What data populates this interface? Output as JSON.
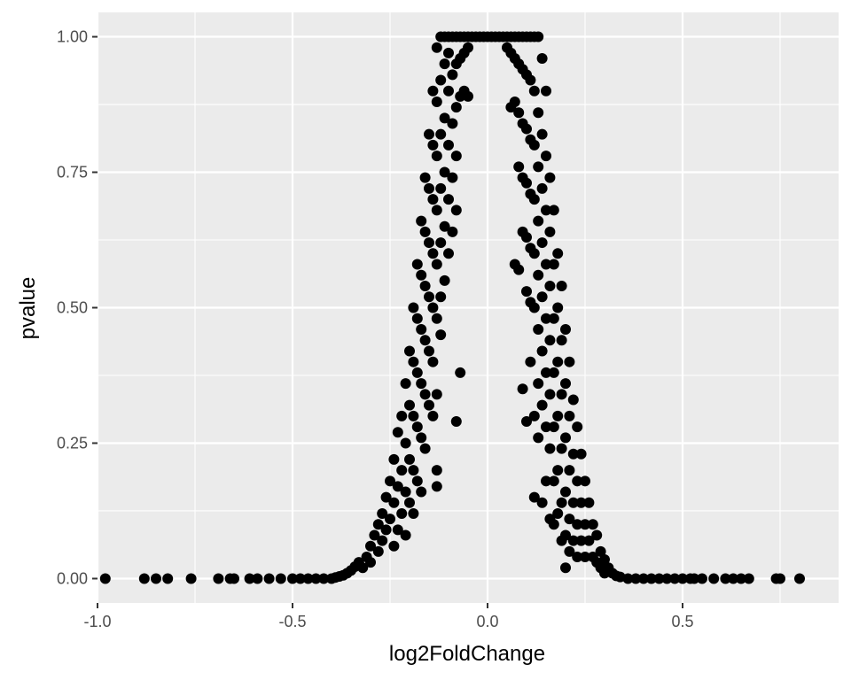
{
  "chart_data": {
    "type": "scatter",
    "title": "",
    "xlabel": "log2FoldChange",
    "ylabel": "pvalue",
    "xlim": [
      -1.0,
      0.9
    ],
    "ylim": [
      -0.045,
      1.045
    ],
    "x_ticks": [
      -1.0,
      -0.5,
      0.0,
      0.5
    ],
    "x_tick_labels": [
      "-1.0",
      "-0.5",
      "0.0",
      "0.5"
    ],
    "y_ticks": [
      0.0,
      0.25,
      0.5,
      0.75,
      1.0
    ],
    "y_tick_labels": [
      "0.00",
      "0.25",
      "0.50",
      "0.75",
      "1.00"
    ],
    "grid": true,
    "legend": "none",
    "colors": {
      "panel": "#ebebeb",
      "grid": "#ffffff",
      "point": "#000000"
    },
    "points": [
      [
        -0.98,
        0
      ],
      [
        -0.88,
        0
      ],
      [
        -0.85,
        0
      ],
      [
        -0.82,
        0
      ],
      [
        -0.76,
        0
      ],
      [
        -0.69,
        0
      ],
      [
        -0.66,
        0
      ],
      [
        -0.65,
        0
      ],
      [
        -0.61,
        0
      ],
      [
        -0.59,
        0
      ],
      [
        -0.56,
        0
      ],
      [
        -0.53,
        0
      ],
      [
        -0.5,
        0
      ],
      [
        -0.48,
        0
      ],
      [
        -0.46,
        0
      ],
      [
        -0.44,
        0
      ],
      [
        -0.42,
        0
      ],
      [
        -0.4,
        0
      ],
      [
        -0.39,
        0.002
      ],
      [
        -0.38,
        0.004
      ],
      [
        -0.37,
        0.006
      ],
      [
        -0.36,
        0.01
      ],
      [
        -0.35,
        0.015
      ],
      [
        -0.34,
        0.022
      ],
      [
        -0.33,
        0.03
      ],
      [
        -0.32,
        0.02
      ],
      [
        -0.31,
        0.04
      ],
      [
        -0.3,
        0.06
      ],
      [
        -0.3,
        0.03
      ],
      [
        -0.29,
        0.08
      ],
      [
        -0.28,
        0.1
      ],
      [
        -0.28,
        0.05
      ],
      [
        -0.27,
        0.12
      ],
      [
        -0.27,
        0.07
      ],
      [
        -0.26,
        0.15
      ],
      [
        -0.26,
        0.09
      ],
      [
        -0.25,
        0.18
      ],
      [
        -0.25,
        0.11
      ],
      [
        -0.24,
        0.22
      ],
      [
        -0.24,
        0.14
      ],
      [
        -0.24,
        0.06
      ],
      [
        -0.23,
        0.27
      ],
      [
        -0.23,
        0.17
      ],
      [
        -0.23,
        0.09
      ],
      [
        -0.22,
        0.3
      ],
      [
        -0.22,
        0.2
      ],
      [
        -0.22,
        0.12
      ],
      [
        -0.21,
        0.36
      ],
      [
        -0.21,
        0.25
      ],
      [
        -0.21,
        0.16
      ],
      [
        -0.21,
        0.08
      ],
      [
        -0.2,
        0.42
      ],
      [
        -0.2,
        0.32
      ],
      [
        -0.2,
        0.22
      ],
      [
        -0.2,
        0.14
      ],
      [
        -0.19,
        0.5
      ],
      [
        -0.19,
        0.4
      ],
      [
        -0.19,
        0.3
      ],
      [
        -0.19,
        0.2
      ],
      [
        -0.19,
        0.12
      ],
      [
        -0.18,
        0.58
      ],
      [
        -0.18,
        0.48
      ],
      [
        -0.18,
        0.38
      ],
      [
        -0.18,
        0.28
      ],
      [
        -0.18,
        0.18
      ],
      [
        -0.17,
        0.66
      ],
      [
        -0.17,
        0.56
      ],
      [
        -0.17,
        0.46
      ],
      [
        -0.17,
        0.36
      ],
      [
        -0.17,
        0.26
      ],
      [
        -0.17,
        0.16
      ],
      [
        -0.16,
        0.74
      ],
      [
        -0.16,
        0.64
      ],
      [
        -0.16,
        0.54
      ],
      [
        -0.16,
        0.44
      ],
      [
        -0.16,
        0.34
      ],
      [
        -0.16,
        0.24
      ],
      [
        -0.15,
        0.82
      ],
      [
        -0.15,
        0.72
      ],
      [
        -0.15,
        0.62
      ],
      [
        -0.15,
        0.52
      ],
      [
        -0.15,
        0.42
      ],
      [
        -0.15,
        0.32
      ],
      [
        -0.14,
        0.9
      ],
      [
        -0.14,
        0.8
      ],
      [
        -0.14,
        0.7
      ],
      [
        -0.14,
        0.6
      ],
      [
        -0.14,
        0.5
      ],
      [
        -0.14,
        0.4
      ],
      [
        -0.14,
        0.3
      ],
      [
        -0.13,
        0.98
      ],
      [
        -0.13,
        0.88
      ],
      [
        -0.13,
        0.78
      ],
      [
        -0.13,
        0.68
      ],
      [
        -0.13,
        0.58
      ],
      [
        -0.13,
        0.48
      ],
      [
        -0.13,
        0.34
      ],
      [
        -0.13,
        0.2
      ],
      [
        -0.13,
        0.17
      ],
      [
        -0.12,
        1
      ],
      [
        -0.12,
        0.92
      ],
      [
        -0.12,
        0.82
      ],
      [
        -0.12,
        0.72
      ],
      [
        -0.12,
        0.62
      ],
      [
        -0.12,
        0.52
      ],
      [
        -0.12,
        0.45
      ],
      [
        -0.11,
        1
      ],
      [
        -0.11,
        0.95
      ],
      [
        -0.11,
        0.85
      ],
      [
        -0.11,
        0.75
      ],
      [
        -0.11,
        0.65
      ],
      [
        -0.11,
        0.55
      ],
      [
        -0.1,
        1
      ],
      [
        -0.1,
        0.97
      ],
      [
        -0.1,
        0.9
      ],
      [
        -0.1,
        0.8
      ],
      [
        -0.1,
        0.7
      ],
      [
        -0.1,
        0.6
      ],
      [
        -0.09,
        1
      ],
      [
        -0.09,
        0.93
      ],
      [
        -0.09,
        0.84
      ],
      [
        -0.09,
        0.74
      ],
      [
        -0.09,
        0.64
      ],
      [
        -0.08,
        1
      ],
      [
        -0.08,
        0.95
      ],
      [
        -0.08,
        0.87
      ],
      [
        -0.08,
        0.78
      ],
      [
        -0.08,
        0.68
      ],
      [
        -0.08,
        0.29
      ],
      [
        -0.07,
        1
      ],
      [
        -0.07,
        0.96
      ],
      [
        -0.07,
        0.89
      ],
      [
        -0.07,
        0.38
      ],
      [
        -0.06,
        1
      ],
      [
        -0.06,
        0.97
      ],
      [
        -0.06,
        0.9
      ],
      [
        -0.05,
        1
      ],
      [
        -0.05,
        0.98
      ],
      [
        -0.05,
        0.89
      ],
      [
        -0.04,
        1
      ],
      [
        -0.03,
        1
      ],
      [
        -0.02,
        1
      ],
      [
        -0.01,
        1
      ],
      [
        0,
        1
      ],
      [
        0.01,
        1
      ],
      [
        0.02,
        1
      ],
      [
        0.03,
        1
      ],
      [
        0.04,
        1
      ],
      [
        0.05,
        1
      ],
      [
        0.05,
        0.98
      ],
      [
        0.06,
        1
      ],
      [
        0.06,
        0.97
      ],
      [
        0.06,
        0.87
      ],
      [
        0.07,
        1
      ],
      [
        0.07,
        0.96
      ],
      [
        0.07,
        0.88
      ],
      [
        0.07,
        0.58
      ],
      [
        0.08,
        1
      ],
      [
        0.08,
        0.95
      ],
      [
        0.08,
        0.86
      ],
      [
        0.08,
        0.76
      ],
      [
        0.08,
        0.57
      ],
      [
        0.09,
        1
      ],
      [
        0.09,
        0.94
      ],
      [
        0.09,
        0.84
      ],
      [
        0.09,
        0.74
      ],
      [
        0.09,
        0.64
      ],
      [
        0.09,
        0.35
      ],
      [
        0.1,
        1
      ],
      [
        0.1,
        0.93
      ],
      [
        0.1,
        0.83
      ],
      [
        0.1,
        0.73
      ],
      [
        0.1,
        0.63
      ],
      [
        0.1,
        0.53
      ],
      [
        0.1,
        0.29
      ],
      [
        0.11,
        1
      ],
      [
        0.11,
        0.92
      ],
      [
        0.11,
        0.81
      ],
      [
        0.11,
        0.71
      ],
      [
        0.11,
        0.61
      ],
      [
        0.11,
        0.51
      ],
      [
        0.11,
        0.4
      ],
      [
        0.12,
        1
      ],
      [
        0.12,
        0.9
      ],
      [
        0.12,
        0.8
      ],
      [
        0.12,
        0.7
      ],
      [
        0.12,
        0.6
      ],
      [
        0.12,
        0.5
      ],
      [
        0.12,
        0.3
      ],
      [
        0.12,
        0.15
      ],
      [
        0.13,
        1
      ],
      [
        0.13,
        0.86
      ],
      [
        0.13,
        0.76
      ],
      [
        0.13,
        0.66
      ],
      [
        0.13,
        0.56
      ],
      [
        0.13,
        0.46
      ],
      [
        0.13,
        0.36
      ],
      [
        0.13,
        0.26
      ],
      [
        0.14,
        0.96
      ],
      [
        0.14,
        0.82
      ],
      [
        0.14,
        0.72
      ],
      [
        0.14,
        0.62
      ],
      [
        0.14,
        0.52
      ],
      [
        0.14,
        0.42
      ],
      [
        0.14,
        0.32
      ],
      [
        0.14,
        0.14
      ],
      [
        0.15,
        0.9
      ],
      [
        0.15,
        0.78
      ],
      [
        0.15,
        0.68
      ],
      [
        0.15,
        0.58
      ],
      [
        0.15,
        0.48
      ],
      [
        0.15,
        0.38
      ],
      [
        0.15,
        0.28
      ],
      [
        0.15,
        0.18
      ],
      [
        0.16,
        0.74
      ],
      [
        0.16,
        0.64
      ],
      [
        0.16,
        0.54
      ],
      [
        0.16,
        0.44
      ],
      [
        0.16,
        0.34
      ],
      [
        0.16,
        0.24
      ],
      [
        0.16,
        0.11
      ],
      [
        0.17,
        0.68
      ],
      [
        0.17,
        0.58
      ],
      [
        0.17,
        0.48
      ],
      [
        0.17,
        0.38
      ],
      [
        0.17,
        0.28
      ],
      [
        0.17,
        0.18
      ],
      [
        0.17,
        0.1
      ],
      [
        0.18,
        0.6
      ],
      [
        0.18,
        0.5
      ],
      [
        0.18,
        0.4
      ],
      [
        0.18,
        0.3
      ],
      [
        0.18,
        0.2
      ],
      [
        0.18,
        0.12
      ],
      [
        0.19,
        0.54
      ],
      [
        0.19,
        0.44
      ],
      [
        0.19,
        0.34
      ],
      [
        0.19,
        0.24
      ],
      [
        0.19,
        0.14
      ],
      [
        0.19,
        0.07
      ],
      [
        0.2,
        0.46
      ],
      [
        0.2,
        0.36
      ],
      [
        0.2,
        0.26
      ],
      [
        0.2,
        0.16
      ],
      [
        0.2,
        0.08
      ],
      [
        0.2,
        0.02
      ],
      [
        0.21,
        0.4
      ],
      [
        0.21,
        0.3
      ],
      [
        0.21,
        0.2
      ],
      [
        0.21,
        0.11
      ],
      [
        0.21,
        0.05
      ],
      [
        0.22,
        0.33
      ],
      [
        0.22,
        0.23
      ],
      [
        0.22,
        0.14
      ],
      [
        0.22,
        0.07
      ],
      [
        0.23,
        0.28
      ],
      [
        0.23,
        0.18
      ],
      [
        0.23,
        0.1
      ],
      [
        0.23,
        0.04
      ],
      [
        0.24,
        0.23
      ],
      [
        0.24,
        0.14
      ],
      [
        0.24,
        0.07
      ],
      [
        0.25,
        0.18
      ],
      [
        0.25,
        0.1
      ],
      [
        0.25,
        0.04
      ],
      [
        0.26,
        0.14
      ],
      [
        0.26,
        0.07
      ],
      [
        0.27,
        0.1
      ],
      [
        0.27,
        0.04
      ],
      [
        0.28,
        0.08
      ],
      [
        0.28,
        0.03
      ],
      [
        0.29,
        0.05
      ],
      [
        0.29,
        0.02
      ],
      [
        0.3,
        0.035
      ],
      [
        0.3,
        0.01
      ],
      [
        0.31,
        0.02
      ],
      [
        0.32,
        0.01
      ],
      [
        0.33,
        0.005
      ],
      [
        0.34,
        0.003
      ],
      [
        0.36,
        0
      ],
      [
        0.38,
        0
      ],
      [
        0.4,
        0
      ],
      [
        0.42,
        0
      ],
      [
        0.44,
        0
      ],
      [
        0.46,
        0
      ],
      [
        0.48,
        0
      ],
      [
        0.5,
        0
      ],
      [
        0.52,
        0
      ],
      [
        0.53,
        0
      ],
      [
        0.55,
        0
      ],
      [
        0.58,
        0
      ],
      [
        0.61,
        0
      ],
      [
        0.63,
        0
      ],
      [
        0.65,
        0
      ],
      [
        0.67,
        0
      ],
      [
        0.74,
        0
      ],
      [
        0.75,
        0
      ],
      [
        0.8,
        0
      ]
    ]
  }
}
